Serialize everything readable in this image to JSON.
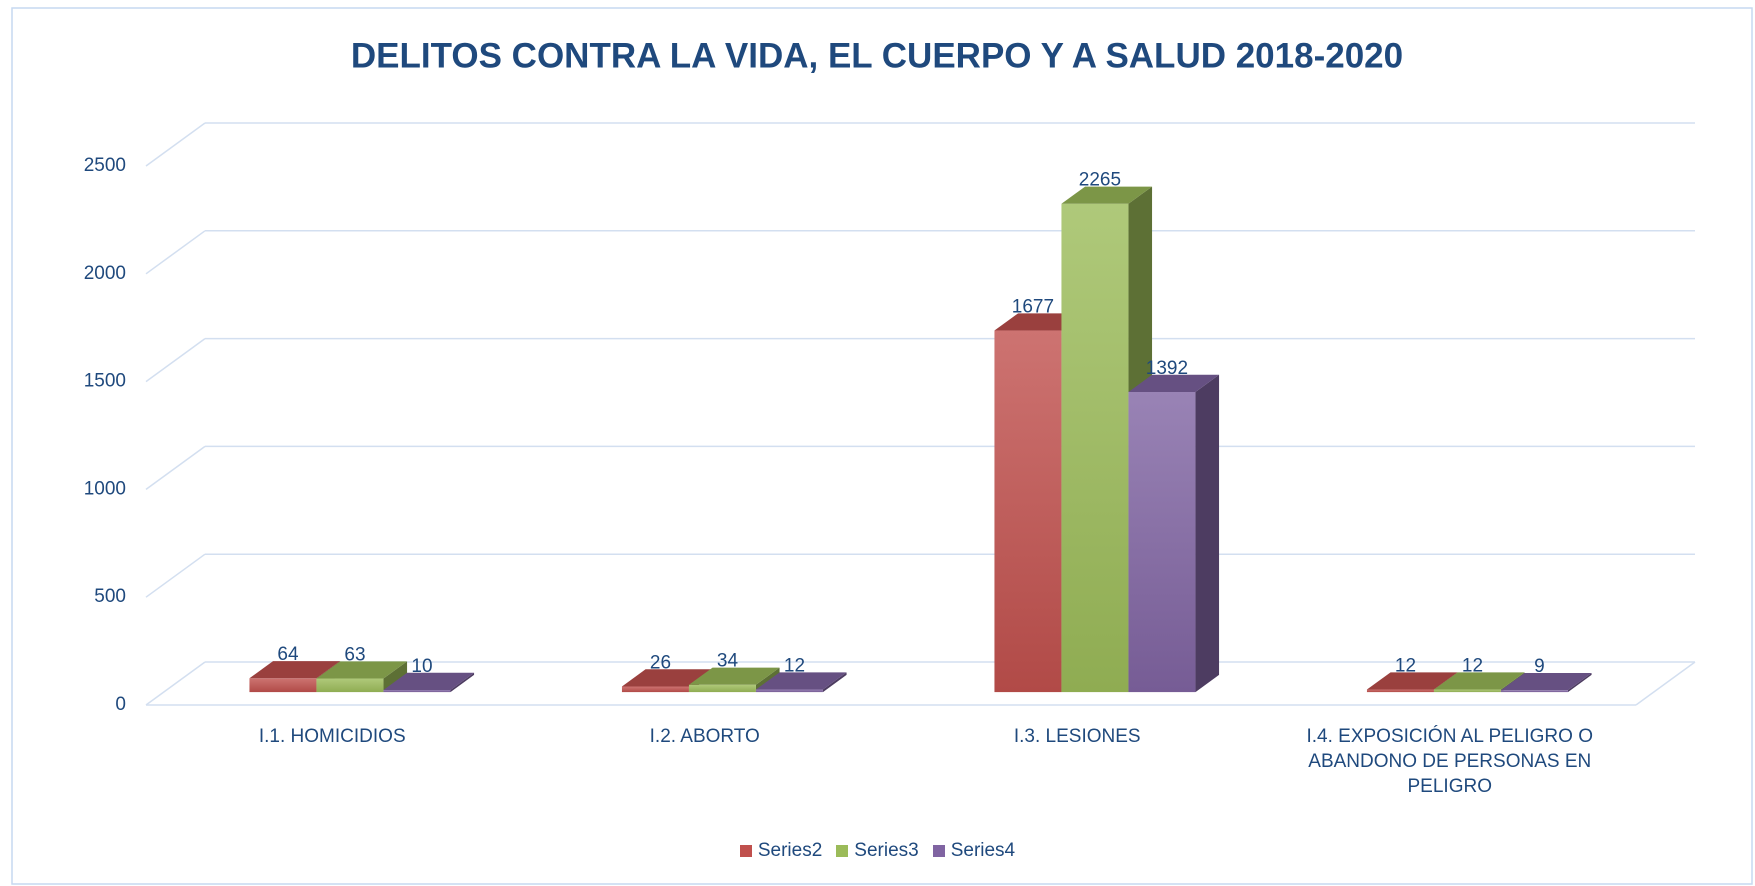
{
  "chart_data": {
    "type": "bar3d",
    "title": "DELITOS CONTRA LA VIDA, EL CUERPO Y A SALUD 2018-2020",
    "categories": [
      "I.1. HOMICIDIOS",
      "I.2. ABORTO",
      "I.3. LESIONES",
      "I.4.  EXPOSICIÓN AL PELIGRO O ABANDONO DE PERSONAS EN PELIGRO"
    ],
    "series": [
      {
        "name": "Series2",
        "color": "#c0504d",
        "values": [
          64,
          26,
          1677,
          12
        ]
      },
      {
        "name": "Series3",
        "color": "#9bbb59",
        "values": [
          63,
          34,
          2265,
          12
        ]
      },
      {
        "name": "Series4",
        "color": "#8064a2",
        "values": [
          10,
          12,
          1392,
          9
        ]
      }
    ],
    "ylim": [
      0,
      2500
    ],
    "yticks": [
      0,
      500,
      1000,
      1500,
      2000,
      2500
    ],
    "grid": true,
    "legend": "bottom"
  }
}
